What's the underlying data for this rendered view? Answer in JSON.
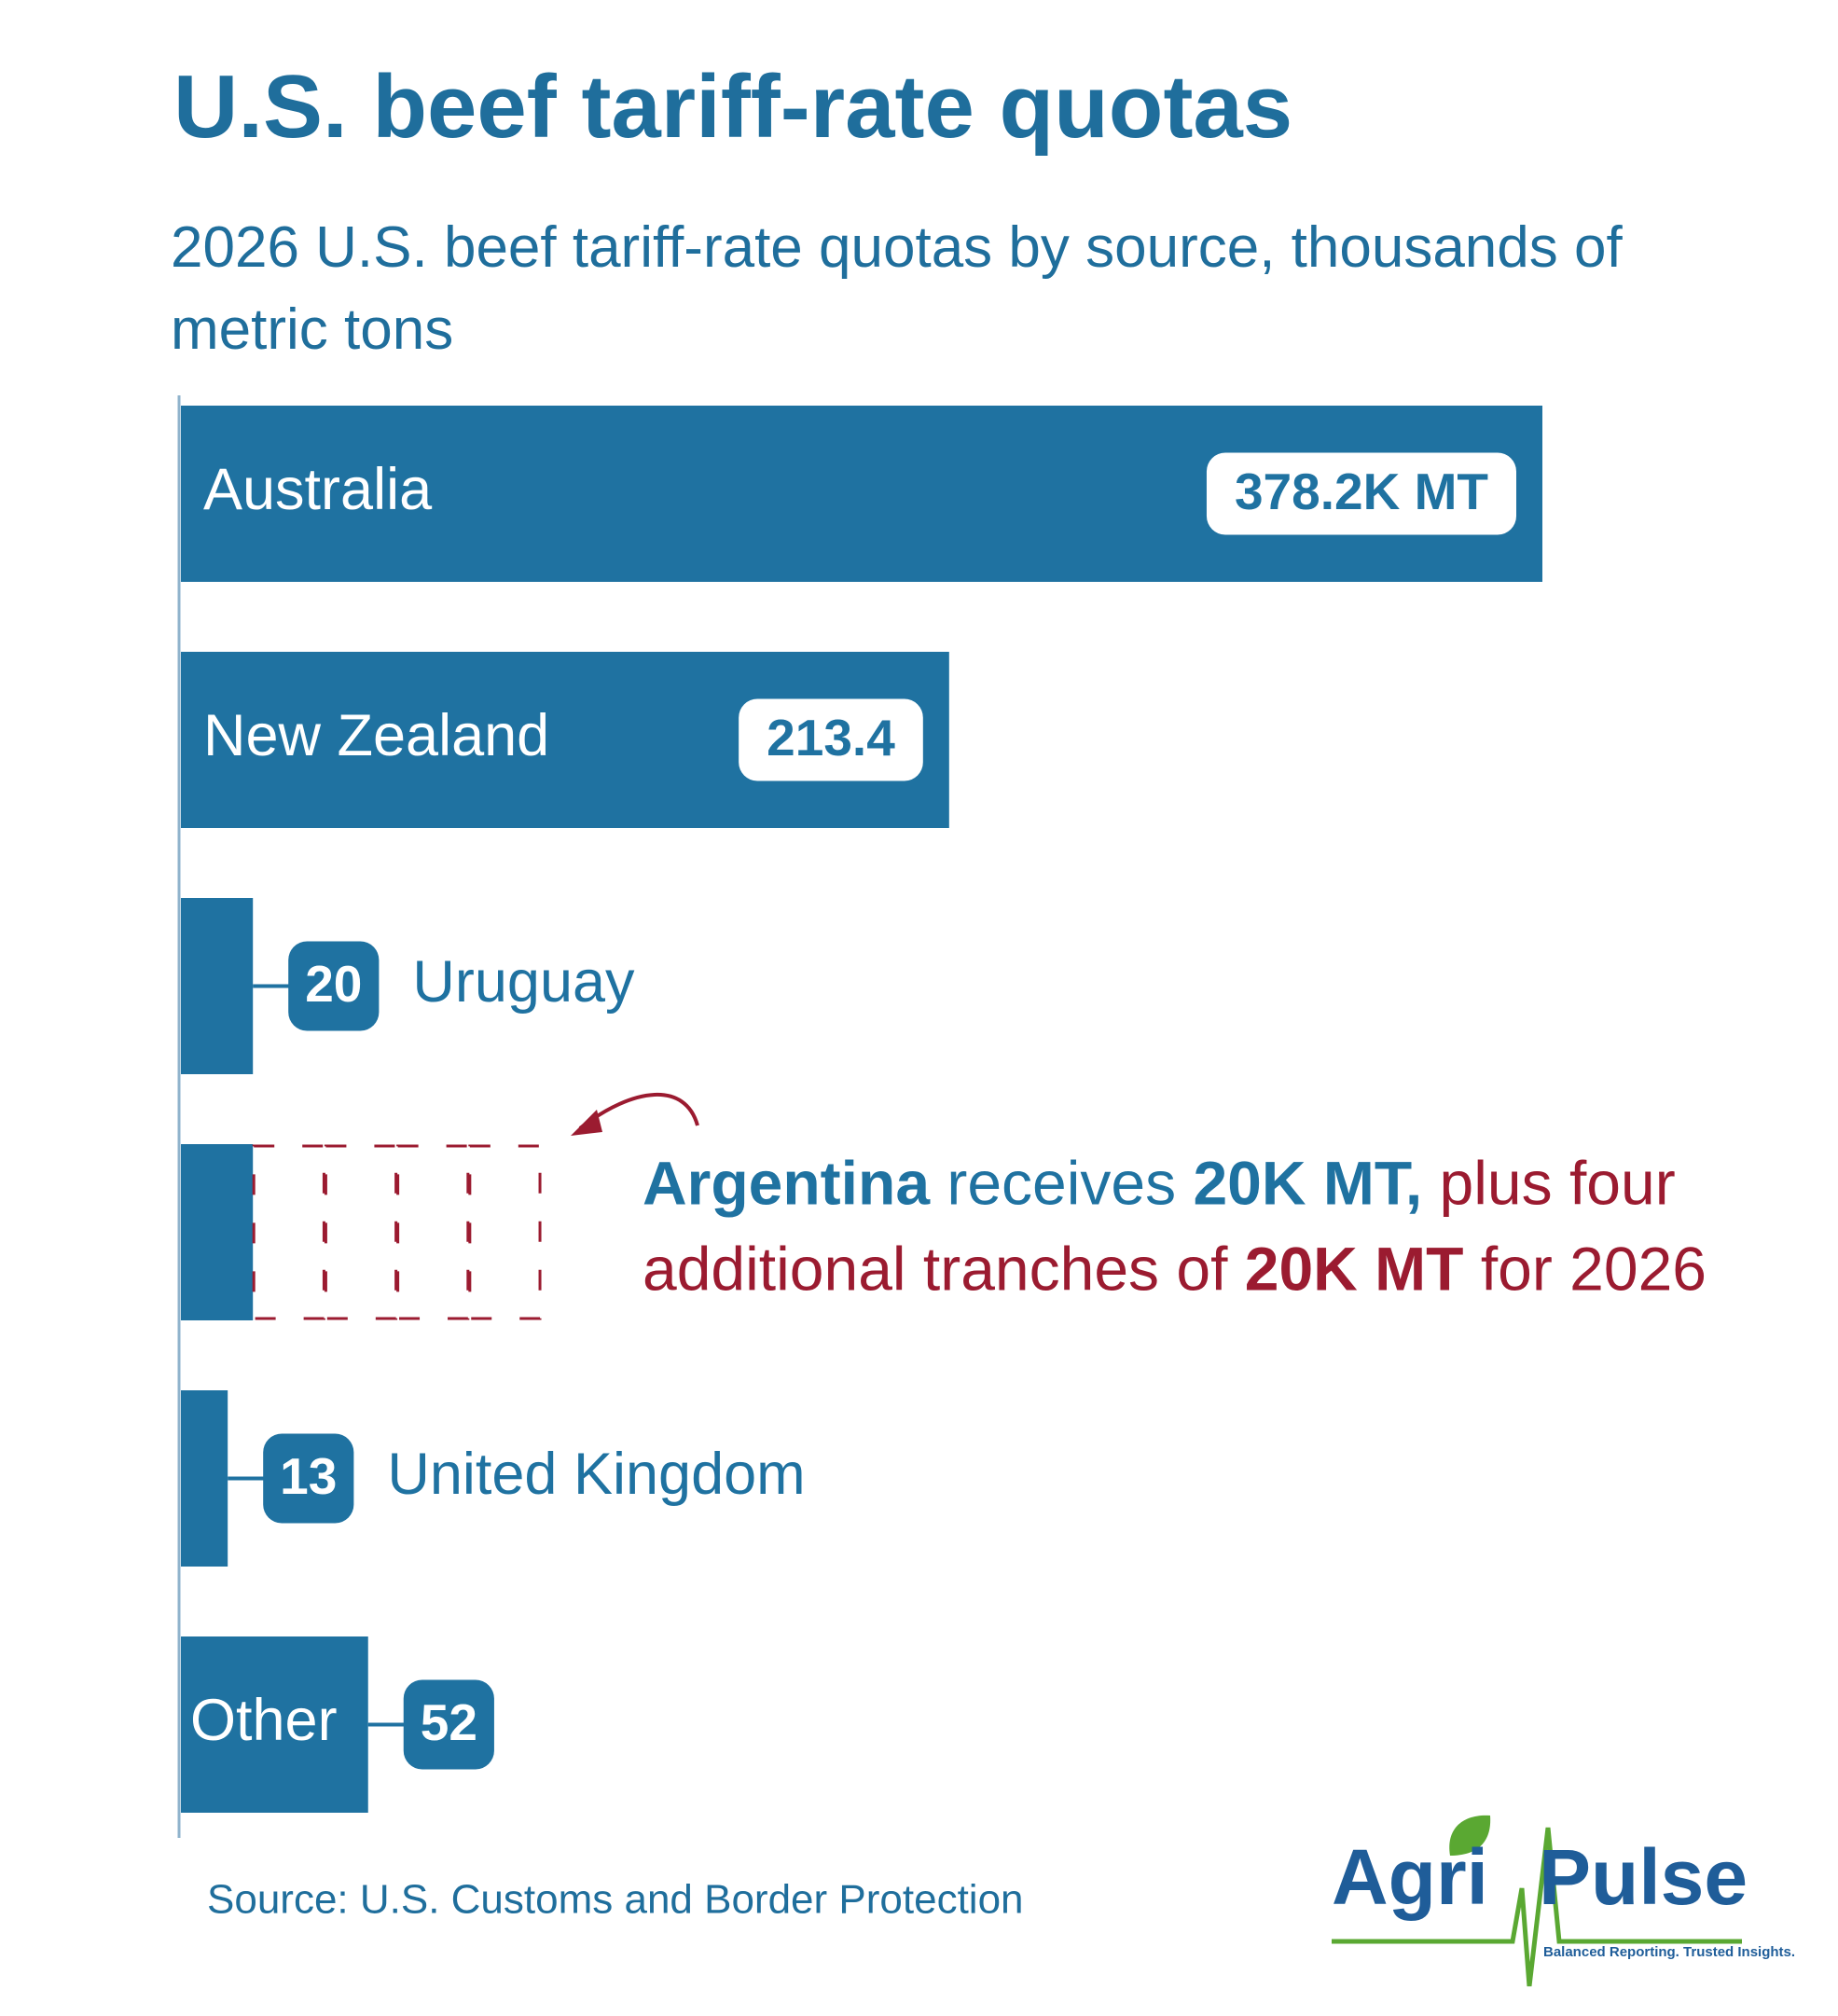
{
  "chart_data": {
    "type": "bar",
    "title": "U.S. beef tariff-rate quotas",
    "subtitle": "2026 U.S. beef tariff-rate quotas by source, thousands of metric tons",
    "categories": [
      "Australia",
      "New Zealand",
      "Uruguay",
      "Argentina",
      "United Kingdom",
      "Other"
    ],
    "values": [
      378.2,
      213.4,
      20,
      20,
      13,
      52
    ],
    "value_labels": [
      "378.2K MT",
      "213.4",
      "20",
      null,
      "13",
      "52"
    ],
    "tranches": [
      20,
      20,
      20,
      20
    ],
    "annotation_lines": [
      [
        " receives ",
        "20K MT,",
        " plus four"
      ],
      [
        "additional tranches of ",
        "20K MT",
        " for 2026"
      ]
    ],
    "color": "#1f72a1",
    "tranche_color": "#9b1b30",
    "xlim": [
      0,
      378.2
    ],
    "source": "Source: U.S. Customs and Border Protection"
  },
  "logo": {
    "word1": "Agri",
    "word2": "Pulse",
    "tagline": "Balanced Reporting. Trusted Insights."
  }
}
